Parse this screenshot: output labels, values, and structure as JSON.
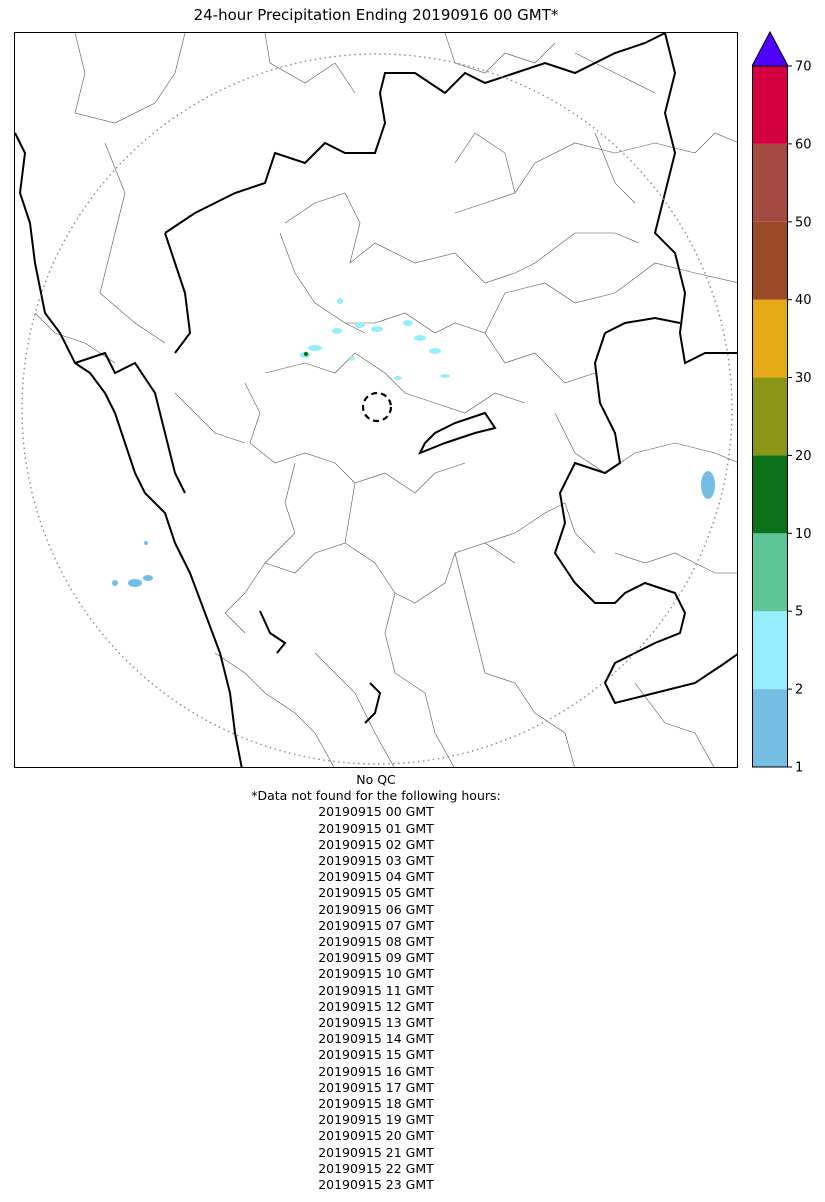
{
  "title": "24-hour Precipitation Ending 20190916 00 GMT*",
  "qc_note": "No QC",
  "missing_note": "*Data not found for the following hours:",
  "missing_hours": [
    "20190915 00 GMT",
    "20190915 01 GMT",
    "20190915 02 GMT",
    "20190915 03 GMT",
    "20190915 04 GMT",
    "20190915 05 GMT",
    "20190915 06 GMT",
    "20190915 07 GMT",
    "20190915 08 GMT",
    "20190915 09 GMT",
    "20190915 10 GMT",
    "20190915 11 GMT",
    "20190915 12 GMT",
    "20190915 13 GMT",
    "20190915 14 GMT",
    "20190915 15 GMT",
    "20190915 16 GMT",
    "20190915 17 GMT",
    "20190915 18 GMT",
    "20190915 19 GMT",
    "20190915 20 GMT",
    "20190915 21 GMT",
    "20190915 22 GMT",
    "20190915 23 GMT"
  ],
  "colorbar": {
    "ticks": [
      "1",
      "2",
      "5",
      "10",
      "20",
      "30",
      "40",
      "50",
      "60",
      "70"
    ],
    "colors": [
      "#74bde3",
      "#96eefc",
      "#5cc698",
      "#0c7219",
      "#8b9617",
      "#e7aa17",
      "#9b4a26",
      "#a44a42",
      "#d4003f"
    ],
    "extend_color": "#5000ff"
  },
  "map": {
    "range_ring": "dotted",
    "radar_marker": "dashed circle",
    "boundary_colors": {
      "major": "#000000",
      "minor": "#555555",
      "ring": "#888888"
    }
  }
}
